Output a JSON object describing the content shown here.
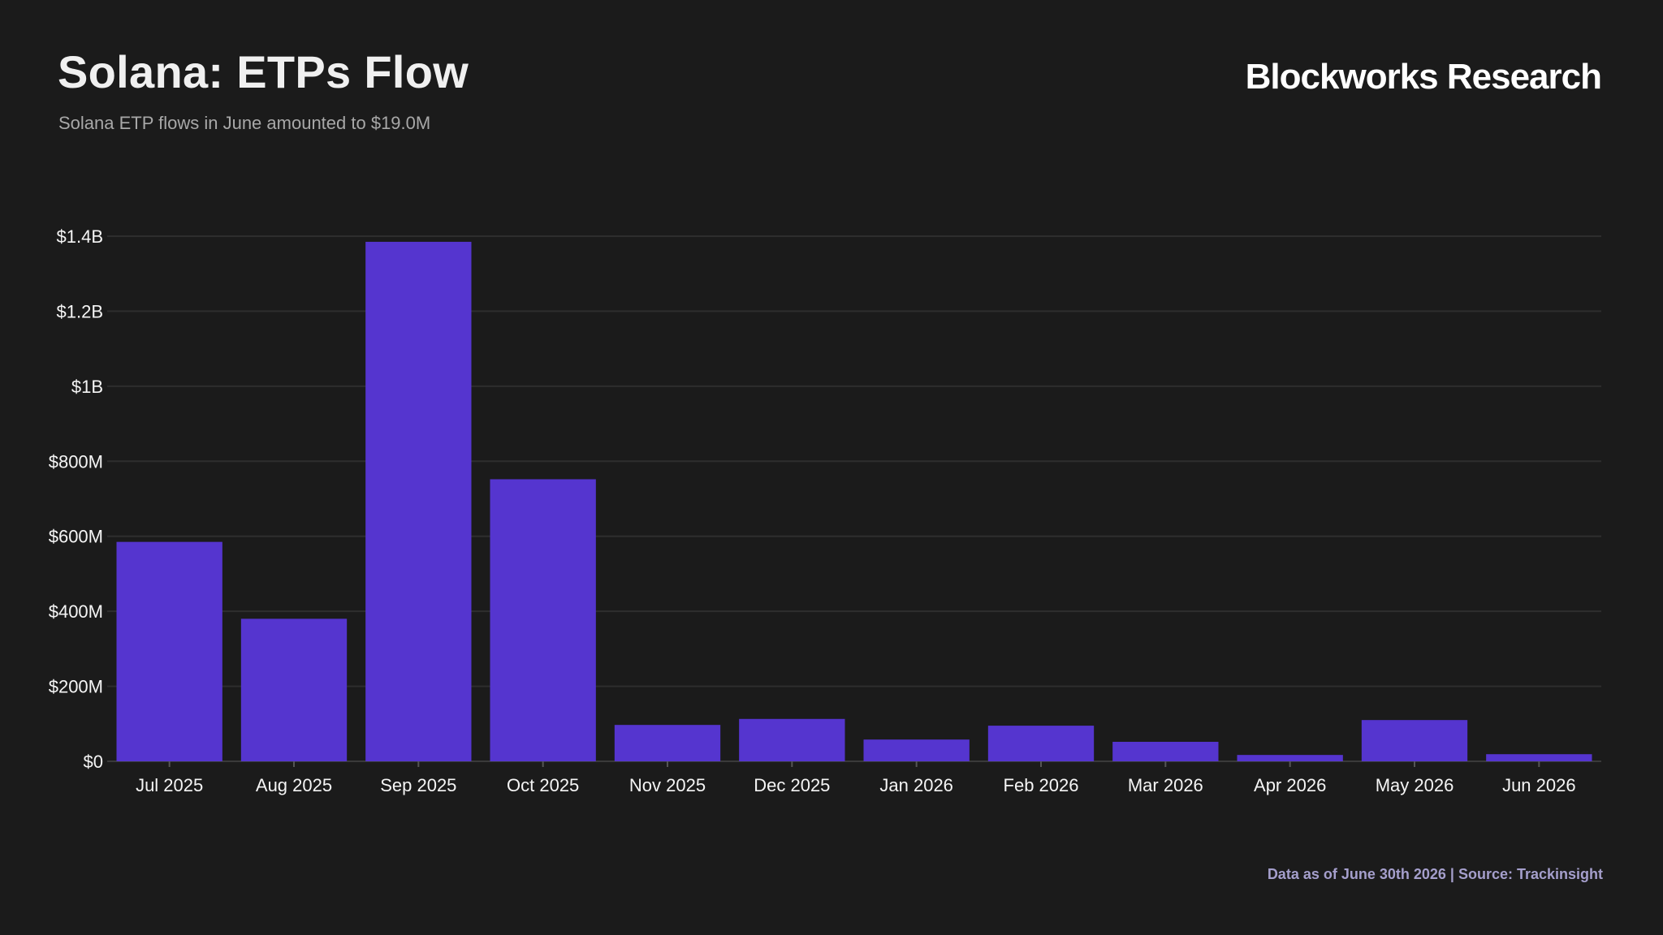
{
  "header": {
    "title": "Solana: ETPs Flow",
    "subtitle": "Solana ETP flows in June amounted to $19.0M",
    "brand": "Blockworks Research"
  },
  "footer": {
    "source": "Data as of June 30th 2026 | Source: Trackinsight"
  },
  "colors": {
    "background": "#1b1b1b",
    "bar": "#5535cf",
    "grid": "#2e2e2e"
  },
  "chart_data": {
    "type": "bar",
    "title": "Solana: ETPs Flow",
    "subtitle": "Solana ETP flows in June amounted to $19.0M",
    "xlabel": "",
    "ylabel": "",
    "categories": [
      "Jul 2025",
      "Aug 2025",
      "Sep 2025",
      "Oct 2025",
      "Nov 2025",
      "Dec 2025",
      "Jan 2026",
      "Feb 2026",
      "Mar 2026",
      "Apr 2026",
      "May 2026",
      "Jun 2026"
    ],
    "values": [
      585000000,
      380000000,
      1385000000,
      752000000,
      97000000,
      113000000,
      58000000,
      95000000,
      52000000,
      17000000,
      110000000,
      19000000
    ],
    "ylim": [
      0,
      1400000000
    ],
    "yticks": [
      0,
      200000000,
      400000000,
      600000000,
      800000000,
      1000000000,
      1200000000,
      1400000000
    ],
    "ytick_labels": [
      "$0",
      "$200M",
      "$400M",
      "$600M",
      "$800M",
      "$1B",
      "$1.2B",
      "$1.4B"
    ],
    "grid": true,
    "legend": "none"
  }
}
